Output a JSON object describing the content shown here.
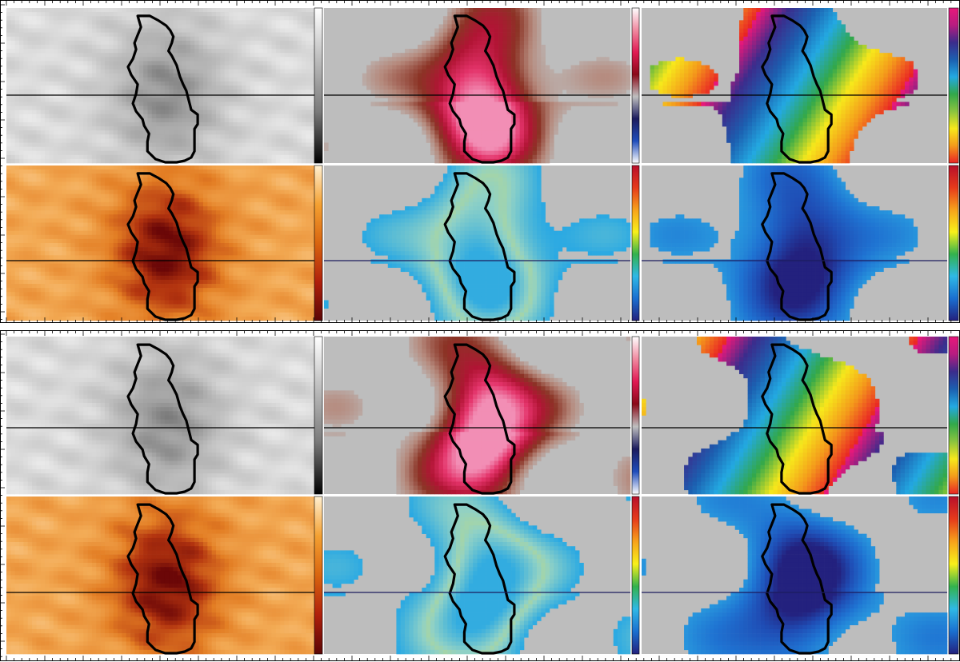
{
  "figure": {
    "background": "#ffffff",
    "frame_color": "#000000",
    "null_fill": "#bdbdbd",
    "contour_color": "#000000",
    "blocks": 2,
    "rows_per_block": 2,
    "columns": 3,
    "colorbars": {
      "gray": [
        "#ffffff",
        "#bcbcbc",
        "#7a7a7a",
        "#000000"
      ],
      "orange": [
        "#fff0d2",
        "#f4a132",
        "#d9650f",
        "#b0200c",
        "#5a0606"
      ],
      "pink": [
        "#ffffff",
        "#f08aa0",
        "#e01a53",
        "#8a0a18",
        "#bfbfbf",
        "#1c1c5e",
        "#1f4dbb",
        "#ffffff"
      ],
      "rainbow": [
        "#b80f2b",
        "#e53a1b",
        "#f7a21b",
        "#f8f01a",
        "#33b24d",
        "#2fb8e6",
        "#1a6fd0",
        "#23217e"
      ],
      "cyclic": [
        "#e8187a",
        "#b71c80",
        "#3b2c8c",
        "#1c5fb0",
        "#23a9e2",
        "#32a84a",
        "#8ac43f",
        "#f7e81b",
        "#f49a1b",
        "#e92424"
      ]
    },
    "panel_colormaps": {
      "intensity": [
        "#ffffff",
        "#d2d2d2",
        "#a8a8a8",
        "#707070"
      ],
      "core": [
        "#fdd8a6",
        "#f3ab55",
        "#e37e24",
        "#b2330f",
        "#6b0707"
      ],
      "strength": [
        "#bdbdbd",
        "#b5897c",
        "#8b3325",
        "#b11434",
        "#e4336a",
        "#f28eb5"
      ],
      "inclination": [
        "#2a2a8a",
        "#1f6fd0",
        "#25a7e4",
        "#8fd1c6",
        "#f3e13a"
      ],
      "azimuth": [
        "#e8187a",
        "#3b2c8c",
        "#1c5fb0",
        "#23a9e2",
        "#32a84a",
        "#f7e81b",
        "#f49a1b",
        "#e92424"
      ],
      "blue": [
        "#23217e",
        "#1f4db5",
        "#1f73d2",
        "#2a9fe0"
      ]
    }
  }
}
